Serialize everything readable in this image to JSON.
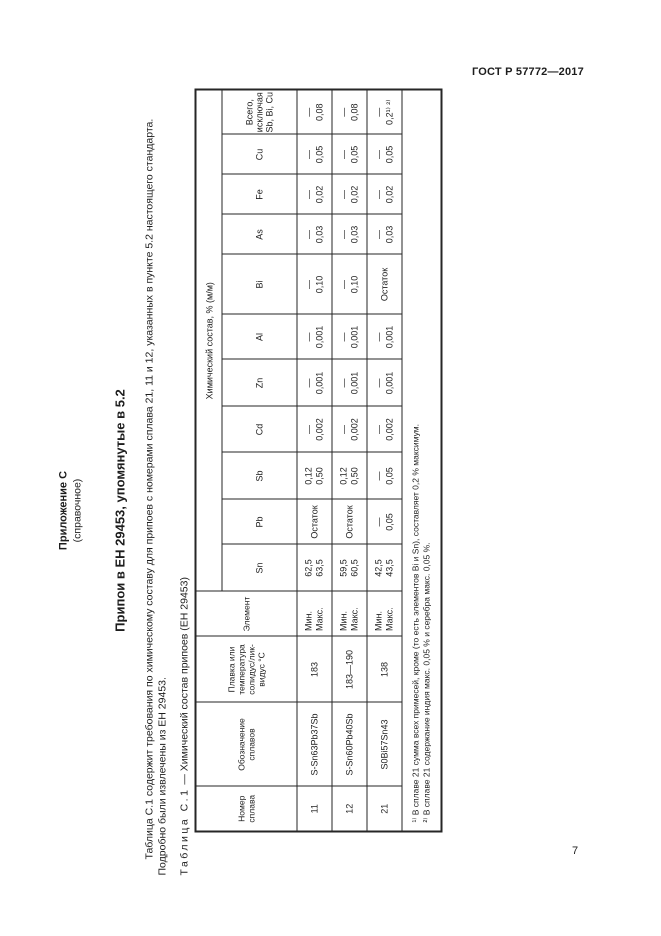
{
  "colors": {
    "background": "#ffffff",
    "text": "#1d1d1d",
    "table_border": "#262626"
  },
  "page": {
    "header_right": "ГОСТ Р 57772—2017",
    "page_number": "7"
  },
  "appendix": {
    "label": "Приложение С",
    "note": "(справочное)",
    "heading": "Припои в ЕН 29453, упомянутые в 5.2"
  },
  "intro": {
    "line1": "Таблица С.1 содержит требования по химическому составу для припоев с номерами сплава 21, 11 и 12, указанных в пункте 5.2 настоящего стандарта.",
    "line2": "Подробно были извлечены из ЕН 29453."
  },
  "table": {
    "caption_label": "Таблица С.1",
    "caption_rest": "— Химический состав припоев (ЕН 29453)",
    "span_header": "Химический состав, % (м/м)",
    "col_headers": [
      "Номер сплава",
      "Обозначение сплавов",
      "Плавка или температура солидус/лик-видус °С",
      "Элемент"
    ],
    "element_headers": [
      "Sn",
      "Pb",
      "Sb",
      "Cd",
      "Zn",
      "Al",
      "Bi",
      "As",
      "Fe",
      "Cu",
      "Всего, исключая Sb, Bi, Cu"
    ],
    "rows": [
      {
        "number": "11",
        "designation": "S-Sn63Pb37Sb",
        "melting": "183",
        "element": [
          "Мин.",
          "Макс."
        ],
        "values": [
          [
            "62,5",
            "63,5"
          ],
          [
            "Остаток"
          ],
          [
            "0,12",
            "0,50"
          ],
          [
            "—",
            "0,002"
          ],
          [
            "—",
            "0,001"
          ],
          [
            "—",
            "0,001"
          ],
          [
            "—",
            "0,10"
          ],
          [
            "—",
            "0,03"
          ],
          [
            "—",
            "0,02"
          ],
          [
            "—",
            "0,05"
          ],
          [
            "—",
            "0,08"
          ]
        ]
      },
      {
        "number": "12",
        "designation": "S-Sn60Pb40Sb",
        "melting": "183—190",
        "element": [
          "Мин.",
          "Макс."
        ],
        "values": [
          [
            "59,5",
            "60,5"
          ],
          [
            "Остаток"
          ],
          [
            "0,12",
            "0,50"
          ],
          [
            "—",
            "0,002"
          ],
          [
            "—",
            "0,001"
          ],
          [
            "—",
            "0,001"
          ],
          [
            "—",
            "0,10"
          ],
          [
            "—",
            "0,03"
          ],
          [
            "—",
            "0,02"
          ],
          [
            "—",
            "0,05"
          ],
          [
            "—",
            "0,08"
          ]
        ]
      },
      {
        "number": "21",
        "designation": "S0Bi57Sn43",
        "melting": "138",
        "element": [
          "Мин.",
          "Макс."
        ],
        "values": [
          [
            "42,5",
            "43,5"
          ],
          [
            "—",
            "0,05"
          ],
          [
            "—",
            "0,05"
          ],
          [
            "—",
            "0,002"
          ],
          [
            "—",
            "0,001"
          ],
          [
            "—",
            "0,001"
          ],
          [
            "Остаток"
          ],
          [
            "—",
            "0,03"
          ],
          [
            "—",
            "0,02"
          ],
          [
            "—",
            "0,05"
          ],
          [
            "—",
            "0,2¹⁾ ²⁾"
          ]
        ]
      }
    ],
    "footnotes": [
      "¹⁾ В сплаве 21 сумма всех примесей, кроме (то есть элементов Bi и Sn), составляет 0,2 % максимум.",
      "²⁾ В сплаве 21 содержание индия макс. 0,05 % и серебра макс. 0,05 %."
    ]
  }
}
